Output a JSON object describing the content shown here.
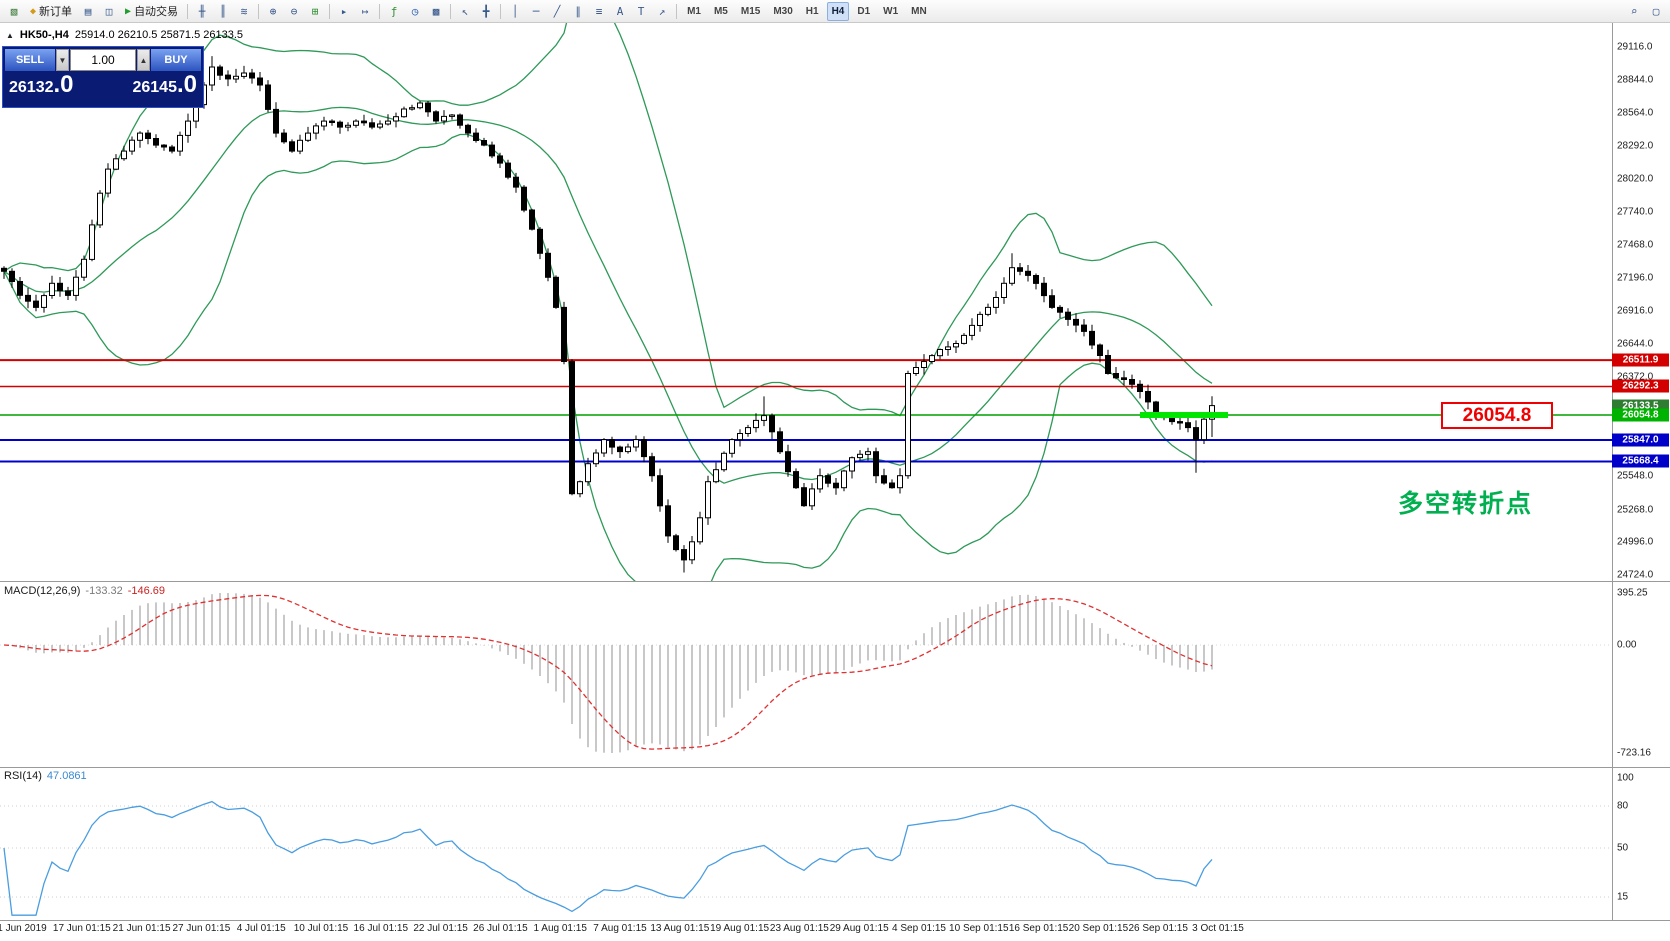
{
  "toolbar": {
    "new_order_label": "新订单",
    "auto_trading_label": "自动交易",
    "timeframes": [
      "M1",
      "M5",
      "M15",
      "M30",
      "H1",
      "H4",
      "D1",
      "W1",
      "MN"
    ],
    "active_timeframe": "H4",
    "items": [
      {
        "type": "icon",
        "name": "new-chart-icon"
      },
      {
        "type": "button",
        "name": "new-order-button",
        "icon": "new-order-icon",
        "label": "新订单"
      },
      {
        "type": "icon",
        "name": "profiles-icon"
      },
      {
        "type": "icon",
        "name": "data-window-icon"
      },
      {
        "type": "button",
        "name": "auto-trading-button",
        "icon": "play-icon",
        "label": "自动交易"
      },
      {
        "type": "sep"
      },
      {
        "type": "icon",
        "name": "bar-chart-icon"
      },
      {
        "type": "icon",
        "name": "candlestick-chart-icon"
      },
      {
        "type": "icon",
        "name": "line-chart-icon"
      },
      {
        "type": "sep"
      },
      {
        "type": "icon",
        "name": "zoom-in-icon"
      },
      {
        "type": "icon",
        "name": "zoom-out-icon"
      },
      {
        "type": "icon",
        "name": "tile-windows-icon"
      },
      {
        "type": "sep"
      },
      {
        "type": "icon",
        "name": "auto-scroll-icon"
      },
      {
        "type": "icon",
        "name": "chart-shift-icon"
      },
      {
        "type": "sep"
      },
      {
        "type": "icon",
        "name": "indicators-icon"
      },
      {
        "type": "icon",
        "name": "periods-icon"
      },
      {
        "type": "icon",
        "name": "templates-icon"
      },
      {
        "type": "sep"
      },
      {
        "type": "icon",
        "name": "cursor-icon"
      },
      {
        "type": "icon",
        "name": "crosshair-icon"
      },
      {
        "type": "sep"
      },
      {
        "type": "icon",
        "name": "vertical-line-icon"
      },
      {
        "type": "icon",
        "name": "horizontal-line-icon"
      },
      {
        "type": "icon",
        "name": "trendline-icon"
      },
      {
        "type": "icon",
        "name": "equidistant-channel-icon"
      },
      {
        "type": "icon",
        "name": "fibonacci-icon"
      },
      {
        "type": "icon",
        "name": "text-icon"
      },
      {
        "type": "icon",
        "name": "text-label-icon"
      },
      {
        "type": "icon",
        "name": "arrows-icon"
      },
      {
        "type": "sep"
      }
    ],
    "right_icons": [
      {
        "type": "icon",
        "name": "search-icon"
      },
      {
        "type": "icon",
        "name": "layout-icon"
      }
    ]
  },
  "chart": {
    "symbol_arrow": "▲",
    "symbol": "HK50-,H4",
    "ohlc_text": "25914.0 26210.5 25871.5 26133.5"
  },
  "trade_panel": {
    "sell_label": "SELL",
    "buy_label": "BUY",
    "volume": "1.00",
    "spinner_down": "▼",
    "spinner_up": "▲",
    "sell_price": "26132",
    "sell_price_fraction": ".0",
    "buy_price": "26145",
    "buy_price_fraction": ".0"
  },
  "annotations": {
    "price_box": "26054.8",
    "price_box_color": "#f00000",
    "note": "多空转折点",
    "note_color": "#00b050"
  },
  "indicators": {
    "macd": {
      "label": "MACD(12,26,9)",
      "value_main": "-133.32",
      "value_signal": "-146.69",
      "axis": [
        "395.25",
        "0.00",
        "-723.16"
      ]
    },
    "rsi": {
      "label": "RSI(14)",
      "value": "47.0861",
      "axis": [
        "100",
        "80",
        "50",
        "15"
      ],
      "levels": [
        80,
        50,
        15
      ]
    }
  },
  "price_axis": {
    "labels": [
      29116.0,
      28844.0,
      28564.0,
      28292.0,
      28020.0,
      27740.0,
      27468.0,
      27196.0,
      26916.0,
      26644.0,
      26372.0,
      25548.0,
      25268.0,
      24996.0,
      24724.0
    ]
  },
  "axis_tags": [
    {
      "price": 26511.9,
      "color": "#d20000"
    },
    {
      "price": 26292.3,
      "color": "#d20000"
    },
    {
      "price": 26133.5,
      "color": "#2e7d32"
    },
    {
      "price": 26054.8,
      "color": "#00b300"
    },
    {
      "price": 25847.0,
      "color": "#0000c8"
    },
    {
      "price": 25668.4,
      "color": "#0000c8"
    }
  ],
  "horizontal_lines": [
    {
      "price": 26511.9,
      "color": "#d20000",
      "width": 2
    },
    {
      "price": 26292.3,
      "color": "#d20000",
      "width": 1.4
    },
    {
      "price": 26054.8,
      "color": "#00a000",
      "width": 1.4
    },
    {
      "price": 25847.0,
      "color": "#0000cc",
      "width": 2
    },
    {
      "price": 25668.4,
      "color": "#0000cc",
      "width": 2
    }
  ],
  "highlight_segment": {
    "price": 26054.8,
    "from_bar": 142,
    "to_bar": 153,
    "color": "#00e600",
    "width": 6
  },
  "x_axis_dates": [
    "1 Jun 2019",
    "17 Jun 01:15",
    "21 Jun 01:15",
    "27 Jun 01:15",
    "4 Jul 01:15",
    "10 Jul 01:15",
    "16 Jul 01:15",
    "22 Jul 01:15",
    "26 Jul 01:15",
    "1 Aug 01:15",
    "7 Aug 01:15",
    "13 Aug 01:15",
    "19 Aug 01:15",
    "23 Aug 01:15",
    "29 Aug 01:15",
    "4 Sep 01:15",
    "10 Sep 01:15",
    "16 Sep 01:15",
    "20 Sep 01:15",
    "26 Sep 01:15",
    "3 Oct 01:15"
  ],
  "colors": {
    "bull": "#ffffff",
    "bear": "#000000",
    "bands": "#2e9958",
    "macd_hist": "#b0b0b0",
    "macd_signal": "#e03030",
    "rsi_line": "#4a9de0",
    "axis_text": "#1c1c1c"
  },
  "chart_data": {
    "type": "candlestick",
    "title": "HK50-,H4",
    "current_ohlc": {
      "open": 25914.0,
      "high": 26210.5,
      "low": 25871.5,
      "close": 26133.5
    },
    "ylim": [
      24724.0,
      29116.0
    ],
    "bars_visible": 152,
    "indicator_params": {
      "bollinger_period": 20,
      "bollinger_deviation": 2,
      "macd": [
        12,
        26,
        9
      ],
      "macd_values": [
        -133.32,
        -146.69
      ],
      "rsi_period": 14,
      "rsi_value": 47.0861,
      "macd_axis_range": [
        -723.16,
        395.25
      ],
      "rsi_axis_range": [
        0,
        100
      ]
    },
    "close_anchors": [
      [
        0,
        27250
      ],
      [
        2,
        27050
      ],
      [
        4,
        26950
      ],
      [
        6,
        27150
      ],
      [
        8,
        27050
      ],
      [
        10,
        27350
      ],
      [
        12,
        27900
      ],
      [
        13,
        28100
      ],
      [
        15,
        28250
      ],
      [
        17,
        28400
      ],
      [
        19,
        28300
      ],
      [
        21,
        28250
      ],
      [
        23,
        28500
      ],
      [
        25,
        28800
      ],
      [
        26,
        28950
      ],
      [
        28,
        28850
      ],
      [
        30,
        28900
      ],
      [
        32,
        28800
      ],
      [
        34,
        28400
      ],
      [
        36,
        28250
      ],
      [
        38,
        28400
      ],
      [
        40,
        28500
      ],
      [
        42,
        28450
      ],
      [
        44,
        28500
      ],
      [
        46,
        28450
      ],
      [
        48,
        28500
      ],
      [
        50,
        28600
      ],
      [
        52,
        28650
      ],
      [
        54,
        28500
      ],
      [
        56,
        28550
      ],
      [
        58,
        28400
      ],
      [
        60,
        28300
      ],
      [
        62,
        28150
      ],
      [
        64,
        27950
      ],
      [
        66,
        27600
      ],
      [
        67,
        27400
      ],
      [
        68,
        27200
      ],
      [
        69,
        26950
      ],
      [
        70,
        26500
      ],
      [
        71,
        25400
      ],
      [
        72,
        25500
      ],
      [
        73,
        25650
      ],
      [
        75,
        25850
      ],
      [
        77,
        25750
      ],
      [
        79,
        25850
      ],
      [
        81,
        25550
      ],
      [
        82,
        25300
      ],
      [
        83,
        25050
      ],
      [
        85,
        24850
      ],
      [
        86,
        25000
      ],
      [
        87,
        25200
      ],
      [
        88,
        25500
      ],
      [
        89,
        25600
      ],
      [
        91,
        25850
      ],
      [
        93,
        25950
      ],
      [
        95,
        26050
      ],
      [
        97,
        25750
      ],
      [
        99,
        25450
      ],
      [
        100,
        25300
      ],
      [
        102,
        25550
      ],
      [
        104,
        25450
      ],
      [
        106,
        25700
      ],
      [
        108,
        25750
      ],
      [
        109,
        25550
      ],
      [
        111,
        25450
      ],
      [
        112,
        25550
      ],
      [
        113,
        26400
      ],
      [
        115,
        26500
      ],
      [
        117,
        26600
      ],
      [
        119,
        26650
      ],
      [
        121,
        26800
      ],
      [
        123,
        26950
      ],
      [
        125,
        27150
      ],
      [
        126,
        27280
      ],
      [
        127,
        27250
      ],
      [
        129,
        27150
      ],
      [
        131,
        26950
      ],
      [
        133,
        26850
      ],
      [
        135,
        26750
      ],
      [
        137,
        26550
      ],
      [
        138,
        26400
      ],
      [
        140,
        26350
      ],
      [
        142,
        26250
      ],
      [
        144,
        26050
      ],
      [
        146,
        26000
      ],
      [
        148,
        25950
      ],
      [
        149,
        25850
      ],
      [
        150,
        26020
      ],
      [
        151,
        26133.5
      ]
    ],
    "wick_overrides": {
      "26": {
        "high": 29040
      },
      "85": {
        "low": 24745
      },
      "95": {
        "high": 26210
      },
      "126": {
        "high": 27400
      },
      "149": {
        "low": 25575
      },
      "151": {
        "high": 26210.5,
        "low": 25871.5
      }
    }
  }
}
